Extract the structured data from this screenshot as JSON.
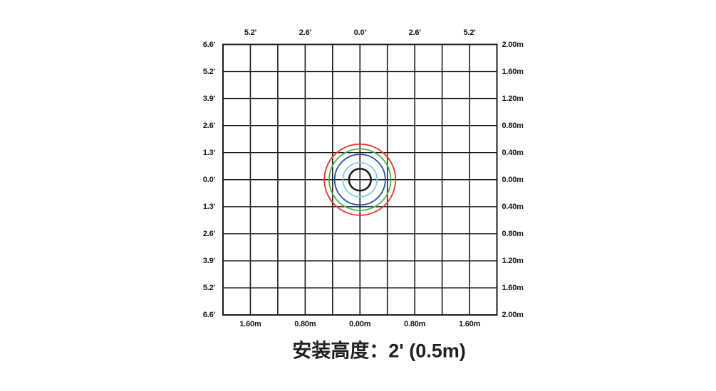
{
  "page": {
    "background": "#ffffff",
    "text_color": "#151515"
  },
  "chart_data": {
    "type": "line",
    "subtype": "concentric-coverage-rings",
    "title": "安装高度：2' (0.5m)",
    "grid": {
      "cols": 10,
      "rows": 10,
      "cell_m": 0.4,
      "cell_ft": 1.3,
      "x_range_m": [
        -2.0,
        2.0
      ],
      "y_range_m": [
        -2.0,
        2.0
      ],
      "line_color": "#1c1c1c",
      "grid_on": true
    },
    "axes": {
      "top": {
        "unit": "feet",
        "labels": [
          "5.2'",
          "2.6'",
          "0.0'",
          "2.6'",
          "5.2'"
        ]
      },
      "left": {
        "unit": "feet",
        "labels": [
          "6.6'",
          "5.2'",
          "3.9'",
          "2.6'",
          "1.3'",
          "0.0'",
          "1.3'",
          "2.6'",
          "3.9'",
          "5.2'",
          "6.6'"
        ]
      },
      "right": {
        "unit": "meters",
        "labels": [
          "2.00m",
          "1.60m",
          "1.20m",
          "0.80m",
          "0.40m",
          "0.00m",
          "0.40m",
          "0.80m",
          "1.20m",
          "1.60m",
          "2.00m"
        ]
      },
      "bottom": {
        "unit": "meters",
        "labels": [
          "1.60m",
          "0.80m",
          "0.00m",
          "0.80m",
          "1.60m"
        ]
      }
    },
    "center": {
      "x_m": 0.0,
      "y_m": 0.0
    },
    "rings": [
      {
        "name": "outer-red-ring",
        "color": "#e8322b",
        "radius_m": 0.52,
        "stroke_px": 1.8
      },
      {
        "name": "green-ring",
        "color": "#4caf47",
        "radius_m": 0.45,
        "stroke_px": 1.8
      },
      {
        "name": "blue-ring",
        "color": "#2850a2",
        "radius_m": 0.37,
        "stroke_px": 1.8
      },
      {
        "name": "cyan-ring",
        "color": "#7dcbe5",
        "radius_m": 0.25,
        "stroke_px": 1.8
      },
      {
        "name": "center-black-ring",
        "color": "#1b1b1b",
        "radius_m": 0.16,
        "stroke_px": 2.6
      }
    ]
  }
}
